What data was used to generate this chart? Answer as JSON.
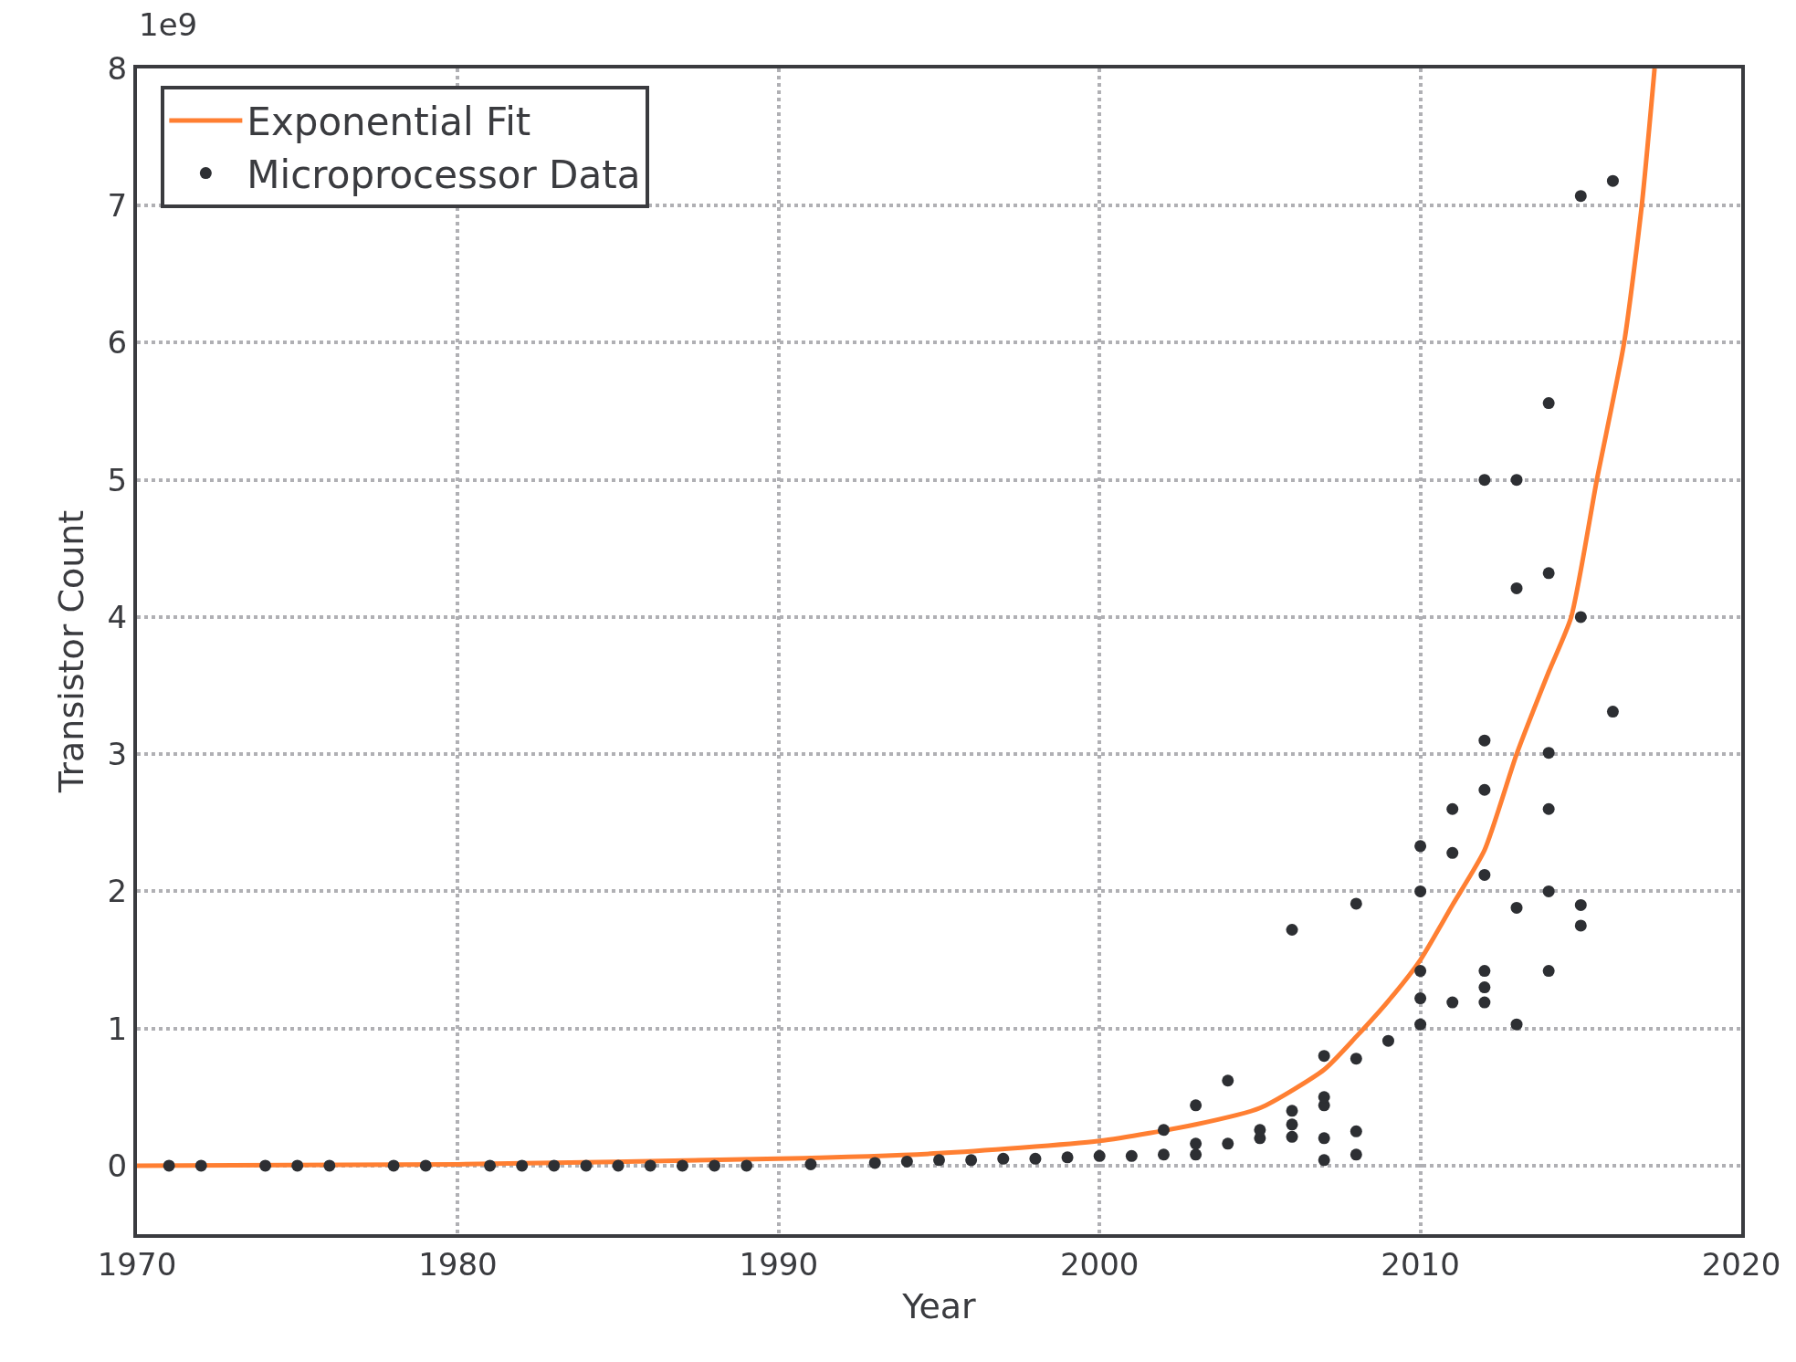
{
  "chart_data": {
    "type": "scatter",
    "xlabel": "Year",
    "ylabel": "Transistor Count",
    "annotations": [
      "1e9"
    ],
    "xlim": [
      1970,
      2020
    ],
    "xticks": [
      1970,
      1980,
      1990,
      2000,
      2010,
      2020
    ],
    "ylim": [
      -0.5,
      8
    ],
    "yticks": [
      0,
      1,
      2,
      3,
      4,
      5,
      6,
      7,
      8
    ],
    "grid": true,
    "legend": "top left",
    "marker": "circle",
    "series": [
      {
        "name": "Exponential Fit",
        "type": "line",
        "color": "#ff7f32",
        "line_style": "solid",
        "marker": "none",
        "x": [
          1970,
          1980,
          1990,
          1995,
          2000,
          2003,
          2005,
          2007,
          2008,
          2009,
          2010,
          2011,
          2012,
          2013,
          2014,
          2014.7,
          2015.5,
          2016.35,
          2016.9,
          2017.3
        ],
        "values": [
          0,
          0.01,
          0.05,
          0.09,
          0.18,
          0.3,
          0.42,
          0.7,
          0.94,
          1.2,
          1.5,
          1.9,
          2.3,
          3.0,
          3.6,
          4.0,
          5.0,
          6.0,
          7.0,
          8.0
        ]
      },
      {
        "name": "Microprocessor Data",
        "color": "#2d2f33",
        "x": [
          1971,
          1972,
          1974,
          1975,
          1976,
          1978,
          1979,
          1981,
          1982,
          1983,
          1984,
          1985,
          1986,
          1987,
          1988,
          1989,
          1991,
          1993,
          1994,
          1995,
          1996,
          1997,
          1998,
          1999,
          2000,
          2001,
          2002,
          2002,
          2003,
          2003,
          2003,
          2004,
          2004,
          2005,
          2005,
          2006,
          2006,
          2006,
          2006,
          2007,
          2007,
          2007,
          2007,
          2007,
          2008,
          2008,
          2008,
          2008,
          2009,
          2010,
          2010,
          2010,
          2010,
          2010,
          2011,
          2011,
          2011,
          2012,
          2012,
          2012,
          2012,
          2012,
          2012,
          2012,
          2013,
          2013,
          2013,
          2013,
          2014,
          2014,
          2014,
          2014,
          2014,
          2014,
          2015,
          2015,
          2015,
          2015,
          2016,
          2016
        ],
        "values": [
          0,
          0,
          0,
          0,
          0,
          0,
          0,
          0,
          0,
          0,
          0,
          0,
          0,
          0,
          0,
          0,
          0.01,
          0.02,
          0.03,
          0.04,
          0.04,
          0.05,
          0.05,
          0.06,
          0.07,
          0.07,
          0.08,
          0.26,
          0.08,
          0.16,
          0.44,
          0.16,
          0.62,
          0.2,
          0.26,
          0.21,
          0.3,
          0.4,
          1.72,
          0.04,
          0.2,
          0.44,
          0.5,
          0.8,
          0.08,
          0.25,
          0.78,
          1.91,
          0.91,
          1.03,
          1.22,
          1.42,
          2.0,
          2.33,
          1.19,
          2.28,
          2.6,
          1.19,
          1.3,
          1.42,
          2.12,
          2.74,
          3.1,
          5.0,
          1.03,
          1.88,
          4.21,
          5.0,
          1.42,
          2.0,
          2.6,
          3.01,
          4.32,
          5.56,
          1.75,
          1.9,
          4.0,
          7.07,
          3.31,
          7.18
        ]
      }
    ]
  }
}
